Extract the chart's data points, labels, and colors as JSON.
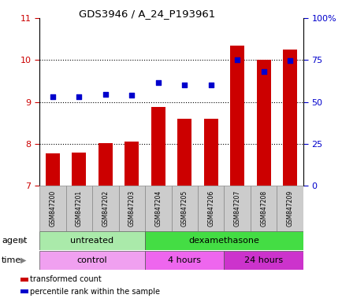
{
  "title": "GDS3946 / A_24_P193961",
  "samples": [
    "GSM847200",
    "GSM847201",
    "GSM847202",
    "GSM847203",
    "GSM847204",
    "GSM847205",
    "GSM847206",
    "GSM847207",
    "GSM847208",
    "GSM847209"
  ],
  "bar_values": [
    7.78,
    7.8,
    8.01,
    8.05,
    8.88,
    8.6,
    8.59,
    10.35,
    10.0,
    10.25
  ],
  "dot_values": [
    9.12,
    9.12,
    9.18,
    9.17,
    9.47,
    9.4,
    9.4,
    10.0,
    9.72,
    9.98
  ],
  "bar_color": "#cc0000",
  "dot_color": "#0000cc",
  "ylim_left": [
    7,
    11
  ],
  "ylim_right": [
    0,
    100
  ],
  "yticks_left": [
    7,
    8,
    9,
    10,
    11
  ],
  "yticks_right": [
    0,
    25,
    50,
    75,
    100
  ],
  "ytick_labels_right": [
    "0",
    "25",
    "50",
    "75",
    "100%"
  ],
  "agent_groups": [
    {
      "label": "untreated",
      "start": 0,
      "end": 4,
      "color": "#aaeaaa"
    },
    {
      "label": "dexamethasone",
      "start": 4,
      "end": 10,
      "color": "#44dd44"
    }
  ],
  "time_groups": [
    {
      "label": "control",
      "start": 0,
      "end": 4,
      "color": "#f0a0f0"
    },
    {
      "label": "4 hours",
      "start": 4,
      "end": 7,
      "color": "#ee66ee"
    },
    {
      "label": "24 hours",
      "start": 7,
      "end": 10,
      "color": "#cc33cc"
    }
  ],
  "legend_bar_label": "transformed count",
  "legend_dot_label": "percentile rank within the sample",
  "left_label_color": "#cc0000",
  "right_label_color": "#0000cc"
}
